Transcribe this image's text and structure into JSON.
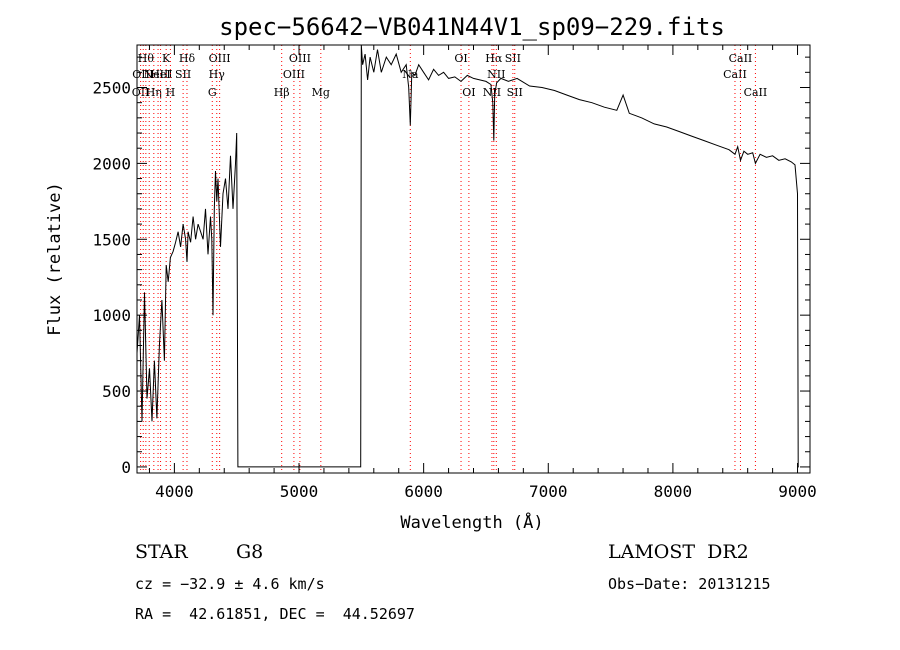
{
  "chart_data": {
    "type": "line",
    "title": "spec−56642−VB041N44V1_sp09−229.fits",
    "xlabel": "Wavelength (Å)",
    "ylabel": "Flux (relative)",
    "xlim": [
      3700,
      9100
    ],
    "ylim": [
      -40,
      2780
    ],
    "x_ticks": [
      4000,
      5000,
      6000,
      7000,
      8000,
      9000
    ],
    "x_tick_labels": [
      "4000",
      "5000",
      "6000",
      "7000",
      "8000",
      "9000"
    ],
    "y_ticks": [
      0,
      500,
      1000,
      1500,
      2000,
      2500
    ],
    "y_tick_labels": [
      "0",
      "500",
      "1000",
      "1500",
      "2000",
      "2500"
    ],
    "grid": false,
    "legend": "none",
    "series": [
      {
        "color": "#000000",
        "x": [
          3700,
          3720,
          3740,
          3760,
          3780,
          3800,
          3820,
          3840,
          3860,
          3880,
          3900,
          3920,
          3934,
          3950,
          3968,
          3990,
          4010,
          4030,
          4050,
          4070,
          4090,
          4101,
          4110,
          4130,
          4150,
          4170,
          4190,
          4210,
          4230,
          4250,
          4270,
          4290,
          4300,
          4310,
          4320,
          4330,
          4340,
          4350,
          4370,
          4390,
          4410,
          4430,
          4450,
          4470,
          4490,
          4500,
          4505,
          4510,
          5495,
          5500,
          5510,
          5530,
          5550,
          5570,
          5600,
          5630,
          5660,
          5700,
          5740,
          5780,
          5820,
          5860,
          5880,
          5893,
          5905,
          5930,
          5960,
          6000,
          6040,
          6080,
          6120,
          6160,
          6200,
          6250,
          6300,
          6350,
          6400,
          6450,
          6500,
          6540,
          6555,
          6563,
          6570,
          6585,
          6620,
          6680,
          6750,
          6850,
          6950,
          7050,
          7150,
          7250,
          7350,
          7450,
          7550,
          7600,
          7650,
          7750,
          7850,
          7950,
          8050,
          8150,
          8250,
          8350,
          8450,
          8498,
          8520,
          8542,
          8570,
          8600,
          8640,
          8662,
          8700,
          8750,
          8800,
          8850,
          8900,
          8950,
          8980,
          9000,
          9005,
          9010
        ],
        "y": [
          750,
          1000,
          300,
          1150,
          450,
          650,
          300,
          700,
          320,
          800,
          1100,
          700,
          1330,
          1220,
          1380,
          1420,
          1480,
          1550,
          1450,
          1600,
          1500,
          1350,
          1550,
          1480,
          1650,
          1500,
          1600,
          1550,
          1500,
          1700,
          1400,
          1650,
          1500,
          1000,
          1700,
          1950,
          1750,
          1900,
          1450,
          1800,
          1900,
          1700,
          2050,
          1700,
          2000,
          2200,
          1200,
          0,
          0,
          2780,
          2650,
          2720,
          2550,
          2700,
          2600,
          2750,
          2600,
          2700,
          2650,
          2720,
          2600,
          2650,
          2500,
          2250,
          2600,
          2580,
          2650,
          2600,
          2550,
          2620,
          2580,
          2600,
          2560,
          2570,
          2540,
          2580,
          2560,
          2550,
          2540,
          2520,
          2400,
          2150,
          2450,
          2530,
          2560,
          2540,
          2560,
          2510,
          2500,
          2480,
          2450,
          2420,
          2400,
          2370,
          2350,
          2450,
          2330,
          2300,
          2260,
          2240,
          2210,
          2180,
          2150,
          2120,
          2090,
          2060,
          2110,
          2020,
          2080,
          2060,
          2070,
          2000,
          2060,
          2040,
          2050,
          2020,
          2030,
          2010,
          1990,
          1800,
          0,
          0
        ]
      }
    ],
    "vlines": [
      {
        "x": 3729,
        "label": "OII",
        "row": 3
      },
      {
        "x": 3750,
        "label": "OIII",
        "row": 2
      },
      {
        "x": 3771,
        "label": "Hθ",
        "row": 1
      },
      {
        "x": 3798,
        "label": "",
        "row": 0
      },
      {
        "x": 3835,
        "label": "Hη",
        "row": 3
      },
      {
        "x": 3869,
        "label": "NeIII",
        "row": 2
      },
      {
        "x": 3889,
        "label": "HeI",
        "row": 2
      },
      {
        "x": 3934,
        "label": "K",
        "row": 1
      },
      {
        "x": 3968,
        "label": "H",
        "row": 3
      },
      {
        "x": 4070,
        "label": "SII",
        "row": 2
      },
      {
        "x": 4101,
        "label": "Hδ",
        "row": 1
      },
      {
        "x": 4304,
        "label": "G",
        "row": 3
      },
      {
        "x": 4340,
        "label": "Hγ",
        "row": 2
      },
      {
        "x": 4363,
        "label": "OIII",
        "row": 1
      },
      {
        "x": 4861,
        "label": "Hβ",
        "row": 3
      },
      {
        "x": 4959,
        "label": "OIII",
        "row": 2
      },
      {
        "x": 5007,
        "label": "OIII",
        "row": 1
      },
      {
        "x": 5175,
        "label": "Mg",
        "row": 3
      },
      {
        "x": 5893,
        "label": "Na",
        "row": 2
      },
      {
        "x": 6300,
        "label": "OI",
        "row": 1
      },
      {
        "x": 6363,
        "label": "OI",
        "row": 3
      },
      {
        "x": 6548,
        "label": "NII",
        "row": 3
      },
      {
        "x": 6563,
        "label": "Hα",
        "row": 1
      },
      {
        "x": 6583,
        "label": "NII",
        "row": 2
      },
      {
        "x": 6716,
        "label": "SII",
        "row": 1
      },
      {
        "x": 6731,
        "label": "SII",
        "row": 3
      },
      {
        "x": 8498,
        "label": "CaII",
        "row": 2
      },
      {
        "x": 8542,
        "label": "CaII",
        "row": 1
      },
      {
        "x": 8662,
        "label": "CaII",
        "row": 3
      }
    ],
    "vline_color": "#ff0000"
  },
  "info": {
    "object_type": "STAR",
    "subclass": "G8",
    "survey": "LAMOST  DR2",
    "velocity": "cz = −32.9 ± 4.6 km/s",
    "obs_date": "Obs−Date: 20131215",
    "coordinates": "RA =  42.61851, DEC =  44.52697"
  }
}
